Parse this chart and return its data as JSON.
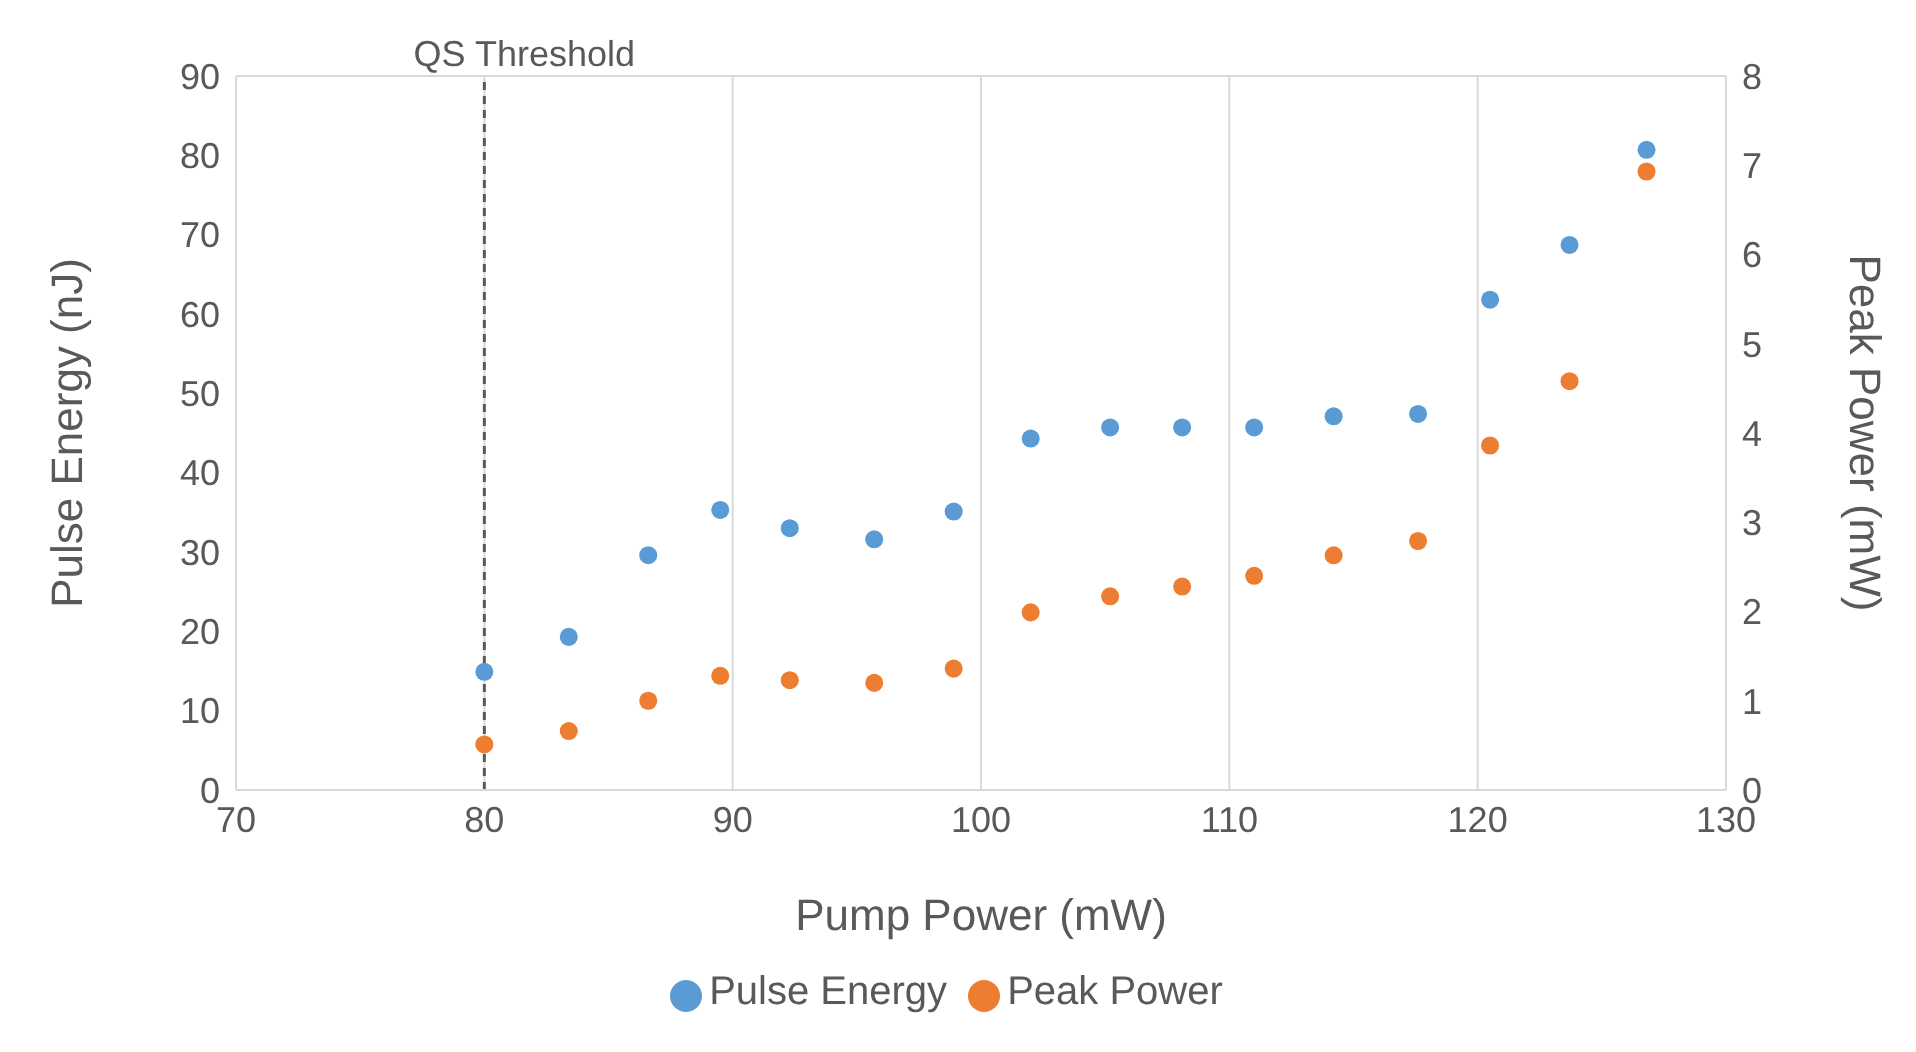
{
  "chart_data": {
    "type": "scatter",
    "xlabel": "Pump Power (mW)",
    "ylabel": "Pulse Energy (nJ)",
    "y2label": "Peak Power (mW)",
    "x": [
      80.0,
      83.4,
      86.6,
      89.5,
      92.3,
      95.7,
      98.9,
      102.0,
      105.2,
      108.1,
      111.0,
      114.2,
      117.6,
      120.5,
      123.7,
      126.8
    ],
    "series": [
      {
        "name": "Pulse Energy",
        "color": "#5b9bd5",
        "values": [
          14.9,
          19.3,
          29.6,
          35.3,
          33.0,
          31.6,
          35.1,
          44.3,
          45.7,
          45.7,
          45.7,
          47.1,
          47.4,
          61.8,
          68.7,
          80.7
        ]
      },
      {
        "name": "Peak Power",
        "color": "#ed7d31",
        "axis": "y2",
        "values": [
          0.51,
          0.66,
          1.0,
          1.28,
          1.23,
          1.2,
          1.36,
          1.99,
          2.17,
          2.28,
          2.4,
          2.63,
          2.79,
          3.86,
          4.58,
          6.93
        ]
      }
    ],
    "xlim": [
      70,
      130
    ],
    "xticks": [
      70,
      80,
      90,
      100,
      110,
      120,
      130
    ],
    "ylim": [
      0,
      90
    ],
    "yticks": [
      0,
      10,
      20,
      30,
      40,
      50,
      60,
      70,
      80,
      90
    ],
    "y2lim": [
      0,
      8
    ],
    "y2ticks": [
      0,
      1,
      2,
      3,
      4,
      5,
      6,
      7,
      8
    ],
    "ref_lines": [
      {
        "axis": "x",
        "value": 80,
        "label": "QS Threshold",
        "color": "#595959",
        "line_style": "dashed"
      }
    ],
    "grid": true,
    "legend": "bottom",
    "marker": "circle"
  }
}
